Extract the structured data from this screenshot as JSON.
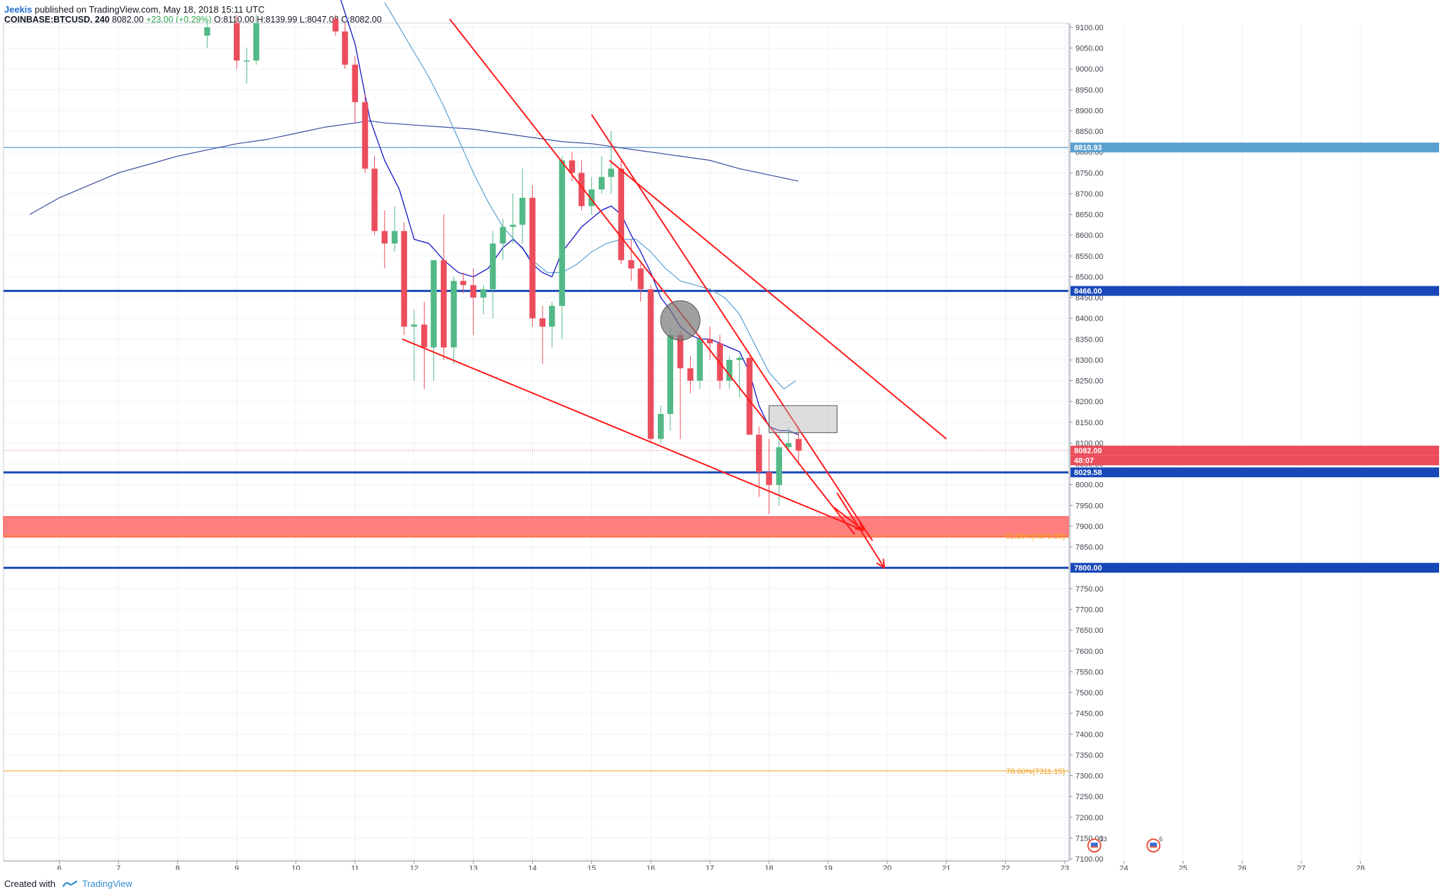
{
  "header": {
    "author": "Jeekis",
    "published": "published on TradingView.com, May 18, 2018 15:11 UTC",
    "symbol": "COINBASE:BTCUSD, 240",
    "last": "8082.00",
    "change": "+23.00 (+0.29%)",
    "ohlc": [
      {
        "label": "O:",
        "value": "8110.00"
      },
      {
        "label": "H:",
        "value": "8139.99"
      },
      {
        "label": "L:",
        "value": "8047.08"
      },
      {
        "label": "C:",
        "value": "8082.00"
      }
    ]
  },
  "footer": {
    "created_with": "Created with",
    "brand": "TradingView"
  },
  "colors": {
    "bull": "#53b987",
    "bear": "#eb4d5c",
    "trend": "#ff1a1a",
    "level": "#1848b8",
    "ema_fast": "#2424c8",
    "ema_mid": "#5aa0d0",
    "ema_slow": "#3a4ca0",
    "zone": "#ff7f7f",
    "fib": "#f0a020"
  },
  "chart_data": {
    "type": "candlestick",
    "symbol": "COINBASE:BTCUSD",
    "timeframe": "240",
    "y_ticks": [
      "9100.00",
      "9050.00",
      "9000.00",
      "8950.00",
      "8900.00",
      "8850.00",
      "8800.00",
      "8750.00",
      "8700.00",
      "8650.00",
      "8600.00",
      "8550.00",
      "8500.00",
      "8450.00",
      "8400.00",
      "8350.00",
      "8300.00",
      "8250.00",
      "8200.00",
      "8150.00",
      "8100.00",
      "8050.00",
      "8000.00",
      "7950.00",
      "7900.00",
      "7850.00",
      "7800.00",
      "7750.00",
      "7700.00",
      "7650.00",
      "7600.00",
      "7550.00",
      "7500.00",
      "7450.00",
      "7400.00",
      "7350.00",
      "7300.00",
      "7250.00",
      "7200.00",
      "7150.00",
      "7100.00"
    ],
    "x_ticks": [
      {
        "label": "6",
        "x": 6
      },
      {
        "label": "7",
        "x": 7
      },
      {
        "label": "8",
        "x": 8
      },
      {
        "label": "9",
        "x": 9
      },
      {
        "label": "10",
        "x": 10
      },
      {
        "label": "11",
        "x": 11
      },
      {
        "label": "12",
        "x": 12
      },
      {
        "label": "13",
        "x": 13
      },
      {
        "label": "14",
        "x": 14
      },
      {
        "label": "15",
        "x": 15
      },
      {
        "label": "16",
        "x": 16
      },
      {
        "label": "17",
        "x": 17
      },
      {
        "label": "18",
        "x": 18
      },
      {
        "label": "19",
        "x": 19
      },
      {
        "label": "20",
        "x": 20
      },
      {
        "label": "21",
        "x": 21
      },
      {
        "label": "22",
        "x": 22
      },
      {
        "label": "23",
        "x": 23
      },
      {
        "label": "24",
        "x": 24
      },
      {
        "label": "25",
        "x": 25
      },
      {
        "label": "26",
        "x": 26
      },
      {
        "label": "27",
        "x": 27
      },
      {
        "label": "28",
        "x": 28
      }
    ],
    "candles": [
      {
        "x": 8.5,
        "o": 9080,
        "h": 9115,
        "l": 9050,
        "c": 9100
      },
      {
        "x": 9.0,
        "o": 9110,
        "h": 9130,
        "l": 9000,
        "c": 9020
      },
      {
        "x": 9.17,
        "o": 9020,
        "h": 9050,
        "l": 8965,
        "c": 9020
      },
      {
        "x": 9.33,
        "o": 9020,
        "h": 9130,
        "l": 9010,
        "c": 9110
      },
      {
        "x": 10.67,
        "o": 9120,
        "h": 9140,
        "l": 9080,
        "c": 9090
      },
      {
        "x": 10.83,
        "o": 9090,
        "h": 9110,
        "l": 9000,
        "c": 9010
      },
      {
        "x": 11.0,
        "o": 9010,
        "h": 9030,
        "l": 8870,
        "c": 8920
      },
      {
        "x": 11.17,
        "o": 8920,
        "h": 8940,
        "l": 8750,
        "c": 8760
      },
      {
        "x": 11.33,
        "o": 8760,
        "h": 8790,
        "l": 8600,
        "c": 8610
      },
      {
        "x": 11.5,
        "o": 8610,
        "h": 8660,
        "l": 8520,
        "c": 8580
      },
      {
        "x": 11.67,
        "o": 8580,
        "h": 8670,
        "l": 8560,
        "c": 8610
      },
      {
        "x": 11.83,
        "o": 8610,
        "h": 8630,
        "l": 8360,
        "c": 8380
      },
      {
        "x": 12.0,
        "o": 8380,
        "h": 8420,
        "l": 8250,
        "c": 8385
      },
      {
        "x": 12.17,
        "o": 8385,
        "h": 8440,
        "l": 8230,
        "c": 8330
      },
      {
        "x": 12.33,
        "o": 8330,
        "h": 8540,
        "l": 8250,
        "c": 8540
      },
      {
        "x": 12.5,
        "o": 8540,
        "h": 8650,
        "l": 8300,
        "c": 8330
      },
      {
        "x": 12.67,
        "o": 8330,
        "h": 8500,
        "l": 8290,
        "c": 8490
      },
      {
        "x": 12.83,
        "o": 8490,
        "h": 8510,
        "l": 8460,
        "c": 8480
      },
      {
        "x": 13.0,
        "o": 8480,
        "h": 8520,
        "l": 8360,
        "c": 8450
      },
      {
        "x": 13.17,
        "o": 8450,
        "h": 8480,
        "l": 8410,
        "c": 8470
      },
      {
        "x": 13.33,
        "o": 8470,
        "h": 8610,
        "l": 8400,
        "c": 8580
      },
      {
        "x": 13.5,
        "o": 8580,
        "h": 8640,
        "l": 8540,
        "c": 8620
      },
      {
        "x": 13.67,
        "o": 8620,
        "h": 8700,
        "l": 8580,
        "c": 8625
      },
      {
        "x": 13.83,
        "o": 8625,
        "h": 8760,
        "l": 8580,
        "c": 8690
      },
      {
        "x": 14.0,
        "o": 8690,
        "h": 8720,
        "l": 8380,
        "c": 8400
      },
      {
        "x": 14.17,
        "o": 8400,
        "h": 8430,
        "l": 8290,
        "c": 8380
      },
      {
        "x": 14.33,
        "o": 8380,
        "h": 8440,
        "l": 8330,
        "c": 8430
      },
      {
        "x": 14.5,
        "o": 8430,
        "h": 8790,
        "l": 8350,
        "c": 8780
      },
      {
        "x": 14.67,
        "o": 8780,
        "h": 8800,
        "l": 8730,
        "c": 8750
      },
      {
        "x": 14.83,
        "o": 8750,
        "h": 8780,
        "l": 8660,
        "c": 8670
      },
      {
        "x": 15.0,
        "o": 8670,
        "h": 8740,
        "l": 8650,
        "c": 8710
      },
      {
        "x": 15.17,
        "o": 8710,
        "h": 8790,
        "l": 8700,
        "c": 8740
      },
      {
        "x": 15.33,
        "o": 8740,
        "h": 8850,
        "l": 8700,
        "c": 8760
      },
      {
        "x": 15.5,
        "o": 8760,
        "h": 8780,
        "l": 8530,
        "c": 8540
      },
      {
        "x": 15.67,
        "o": 8540,
        "h": 8590,
        "l": 8490,
        "c": 8520
      },
      {
        "x": 15.83,
        "o": 8520,
        "h": 8530,
        "l": 8440,
        "c": 8470
      },
      {
        "x": 16.0,
        "o": 8470,
        "h": 8480,
        "l": 8100,
        "c": 8110
      },
      {
        "x": 16.17,
        "o": 8110,
        "h": 8190,
        "l": 8100,
        "c": 8170
      },
      {
        "x": 16.33,
        "o": 8170,
        "h": 8380,
        "l": 8130,
        "c": 8360
      },
      {
        "x": 16.5,
        "o": 8360,
        "h": 8370,
        "l": 8110,
        "c": 8280
      },
      {
        "x": 16.67,
        "o": 8280,
        "h": 8310,
        "l": 8220,
        "c": 8250
      },
      {
        "x": 16.83,
        "o": 8250,
        "h": 8360,
        "l": 8230,
        "c": 8350
      },
      {
        "x": 17.0,
        "o": 8350,
        "h": 8380,
        "l": 8300,
        "c": 8340
      },
      {
        "x": 17.17,
        "o": 8340,
        "h": 8360,
        "l": 8230,
        "c": 8250
      },
      {
        "x": 17.33,
        "o": 8250,
        "h": 8310,
        "l": 8230,
        "c": 8300
      },
      {
        "x": 17.5,
        "o": 8300,
        "h": 8310,
        "l": 8210,
        "c": 8305
      },
      {
        "x": 17.67,
        "o": 8305,
        "h": 8310,
        "l": 8120,
        "c": 8120
      },
      {
        "x": 17.83,
        "o": 8120,
        "h": 8140,
        "l": 7970,
        "c": 8030
      },
      {
        "x": 18.0,
        "o": 8030,
        "h": 8110,
        "l": 7930,
        "c": 7999
      },
      {
        "x": 18.17,
        "o": 7999,
        "h": 8120,
        "l": 7950,
        "c": 8090
      },
      {
        "x": 18.33,
        "o": 8090,
        "h": 8140,
        "l": 8080,
        "c": 8100
      },
      {
        "x": 18.5,
        "o": 8110,
        "h": 8140,
        "l": 8047,
        "c": 8082
      }
    ],
    "ema_fast": [
      [
        10.75,
        9170
      ],
      [
        11.0,
        9060
      ],
      [
        11.25,
        8880
      ],
      [
        11.5,
        8780
      ],
      [
        11.75,
        8710
      ],
      [
        12.0,
        8590
      ],
      [
        12.25,
        8580
      ],
      [
        12.5,
        8540
      ],
      [
        12.75,
        8510
      ],
      [
        13.0,
        8500
      ],
      [
        13.25,
        8520
      ],
      [
        13.5,
        8570
      ],
      [
        13.67,
        8590
      ],
      [
        13.83,
        8570
      ],
      [
        14.0,
        8530
      ],
      [
        14.17,
        8510
      ],
      [
        14.33,
        8500
      ],
      [
        14.5,
        8560
      ],
      [
        14.67,
        8590
      ],
      [
        14.83,
        8620
      ],
      [
        15.0,
        8640
      ],
      [
        15.17,
        8660
      ],
      [
        15.33,
        8670
      ],
      [
        15.5,
        8650
      ],
      [
        15.67,
        8600
      ],
      [
        15.83,
        8560
      ],
      [
        16.0,
        8510
      ],
      [
        16.17,
        8450
      ],
      [
        16.33,
        8420
      ],
      [
        16.5,
        8380
      ],
      [
        16.67,
        8360
      ],
      [
        16.83,
        8350
      ],
      [
        17.0,
        8350
      ],
      [
        17.17,
        8340
      ],
      [
        17.33,
        8330
      ],
      [
        17.5,
        8320
      ],
      [
        17.67,
        8270
      ],
      [
        17.83,
        8190
      ],
      [
        18.0,
        8140
      ],
      [
        18.17,
        8130
      ],
      [
        18.33,
        8130
      ],
      [
        18.5,
        8120
      ]
    ],
    "ema_mid": [
      [
        11.5,
        9160
      ],
      [
        11.75,
        9100
      ],
      [
        12.0,
        9040
      ],
      [
        12.25,
        8980
      ],
      [
        12.5,
        8910
      ],
      [
        12.75,
        8830
      ],
      [
        13.0,
        8750
      ],
      [
        13.25,
        8680
      ],
      [
        13.5,
        8620
      ],
      [
        13.75,
        8580
      ],
      [
        14.0,
        8540
      ],
      [
        14.25,
        8510
      ],
      [
        14.5,
        8510
      ],
      [
        14.75,
        8530
      ],
      [
        15.0,
        8560
      ],
      [
        15.25,
        8580
      ],
      [
        15.5,
        8590
      ],
      [
        15.75,
        8590
      ],
      [
        16.0,
        8560
      ],
      [
        16.25,
        8520
      ],
      [
        16.5,
        8490
      ],
      [
        16.75,
        8480
      ],
      [
        17.0,
        8470
      ],
      [
        17.25,
        8450
      ],
      [
        17.5,
        8410
      ],
      [
        17.75,
        8340
      ],
      [
        18.0,
        8270
      ],
      [
        18.25,
        8230
      ],
      [
        18.45,
        8250
      ]
    ],
    "ema_slow": [
      [
        5.5,
        8650
      ],
      [
        6.0,
        8690
      ],
      [
        6.5,
        8720
      ],
      [
        7.0,
        8750
      ],
      [
        7.5,
        8770
      ],
      [
        8.0,
        8790
      ],
      [
        8.5,
        8805
      ],
      [
        9.0,
        8820
      ],
      [
        9.5,
        8830
      ],
      [
        10.0,
        8845
      ],
      [
        10.5,
        8860
      ],
      [
        11.0,
        8870
      ],
      [
        11.25,
        8875
      ],
      [
        11.5,
        8870
      ],
      [
        12.0,
        8865
      ],
      [
        12.5,
        8860
      ],
      [
        13.0,
        8855
      ],
      [
        13.5,
        8845
      ],
      [
        14.0,
        8835
      ],
      [
        14.5,
        8825
      ],
      [
        15.0,
        8820
      ],
      [
        15.5,
        8810
      ],
      [
        16.0,
        8800
      ],
      [
        16.5,
        8790
      ],
      [
        17.0,
        8780
      ],
      [
        17.5,
        8760
      ],
      [
        18.0,
        8745
      ],
      [
        18.5,
        8730
      ]
    ],
    "horizontal_levels": [
      {
        "price": 8810.93,
        "label": "8810.93",
        "style": "thin",
        "color": "#5aa0d0"
      },
      {
        "price": 8466.0,
        "label": "8466.00",
        "style": "thick",
        "color": "#1848b8"
      },
      {
        "price": 8029.58,
        "label": "8029.58",
        "style": "thick",
        "color": "#1848b8"
      },
      {
        "price": 7800.0,
        "label": "7800.00",
        "style": "thick",
        "color": "#1848b8"
      }
    ],
    "last_price": {
      "price": 8082.0,
      "label": "8082.00",
      "countdown": "48:07"
    },
    "fib_levels": [
      {
        "price": 7876.58,
        "label": "61.80%(7876.58)"
      },
      {
        "price": 7311.15,
        "label": "78.60%(7311.15)"
      }
    ],
    "zone": {
      "top": 7923,
      "bottom": 7874
    },
    "trendlines": [
      {
        "x1": 12.6,
        "y1": 9120,
        "x2": 19.45,
        "y2": 7880
      },
      {
        "x1": 15.0,
        "y1": 8890,
        "x2": 19.75,
        "y2": 7865
      },
      {
        "x1": 15.3,
        "y1": 8780,
        "x2": 21.0,
        "y2": 8110
      },
      {
        "x1": 11.8,
        "y1": 8350,
        "x2": 19.6,
        "y2": 7890
      }
    ],
    "arrows": [
      {
        "x1": 19.15,
        "y1": 7980,
        "x2": 19.95,
        "y2": 7800
      },
      {
        "x1": 19.1,
        "y1": 7945,
        "x2": 19.6,
        "y2": 7890
      }
    ],
    "shapes": [
      {
        "type": "circle",
        "x": 16.5,
        "y": 8395
      },
      {
        "type": "rect",
        "x1": 18.0,
        "y1": 8190,
        "x2": 19.15,
        "y2": 8125
      }
    ],
    "event_markers": [
      {
        "x": 23.5,
        "count": "13"
      },
      {
        "x": 24.5,
        "count": "6"
      }
    ]
  }
}
